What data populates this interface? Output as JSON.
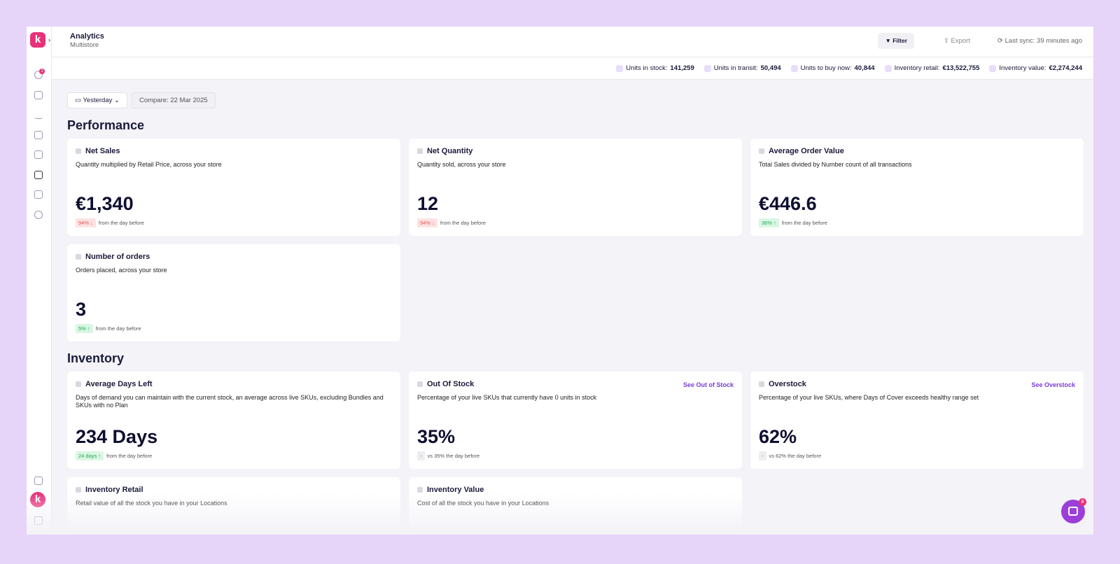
{
  "sidebar": {
    "logo": "k",
    "badge": "1",
    "avatar": "k"
  },
  "header": {
    "title": "Analytics",
    "subtitle": "Multistore",
    "filter": "Filter",
    "export": "Export",
    "sync": "Last sync: 39 minutes ago"
  },
  "stats": [
    {
      "label": "Units in stock:",
      "value": "141,259"
    },
    {
      "label": "Units in transit:",
      "value": "50,494"
    },
    {
      "label": "Units to buy now:",
      "value": "40,844"
    },
    {
      "label": "Inventory retail:",
      "value": "€13,522,755"
    },
    {
      "label": "Inventory value:",
      "value": "€2,274,244"
    }
  ],
  "filters": {
    "period": "Yesterday",
    "compare": "Compare: 22 Mar 2025"
  },
  "sections": [
    {
      "title": "Performance",
      "cards": [
        {
          "title": "Net Sales",
          "description": "Quantity multiplied by Retail Price, across your store",
          "value": "€1,340",
          "change": "94% ↓",
          "note": "from the day before",
          "badge_color": "#fde2e2",
          "badge_text_color": "#e05a5a"
        },
        {
          "title": "Net Quantity",
          "description": "Quantity sold, across your store",
          "value": "12",
          "change": "94% ↓",
          "note": "from the day before",
          "badge_color": "#fde2e2",
          "badge_text_color": "#e05a5a"
        },
        {
          "title": "Average Order Value",
          "description": "Total Sales divided by Number count of all transactions",
          "value": "€446.6",
          "change": "36% ↑",
          "note": "from the day before",
          "badge_color": "#d9f7e3",
          "badge_text_color": "#2aa35a"
        },
        {
          "title": "Number of orders",
          "description": "Orders placed, across your store",
          "value": "3",
          "change": "5% ↑",
          "note": "from the day before",
          "badge_color": "#d9f7e3",
          "badge_text_color": "#2aa35a"
        }
      ]
    },
    {
      "title": "Inventory",
      "cards": [
        {
          "title": "Average Days Left",
          "description": "Days of demand you can maintain with the current stock, an average across live SKUs, excluding Bundles and SKUs with no Plan",
          "value": "234 Days",
          "change": "24 days ↑",
          "note": "from the day before",
          "badge_color": "#d9f7e3",
          "badge_text_color": "#2aa35a"
        },
        {
          "title": "Out Of Stock",
          "link": "See Out of Stock",
          "description": "Percentage of your live SKUs that currently have 0 units in stock",
          "value": "35%",
          "change": "-",
          "note": "vs 35% the day before",
          "badge_color": "#eeeef2",
          "badge_text_color": "#666"
        },
        {
          "title": "Overstock",
          "link": "See Overstock",
          "description": "Percentage of your live SKUs, where Days of Cover exceeds healthy range set",
          "value": "62%",
          "change": "-",
          "note": "vs 62% the day before",
          "badge_color": "#eeeef2",
          "badge_text_color": "#666"
        },
        {
          "title": "Inventory Retail",
          "description": "Retail value of all the stock you have in your Locations"
        },
        {
          "title": "Inventory Value",
          "description": "Cost of all the stock you have in your Locations"
        }
      ]
    }
  ],
  "chat_badge": "8"
}
